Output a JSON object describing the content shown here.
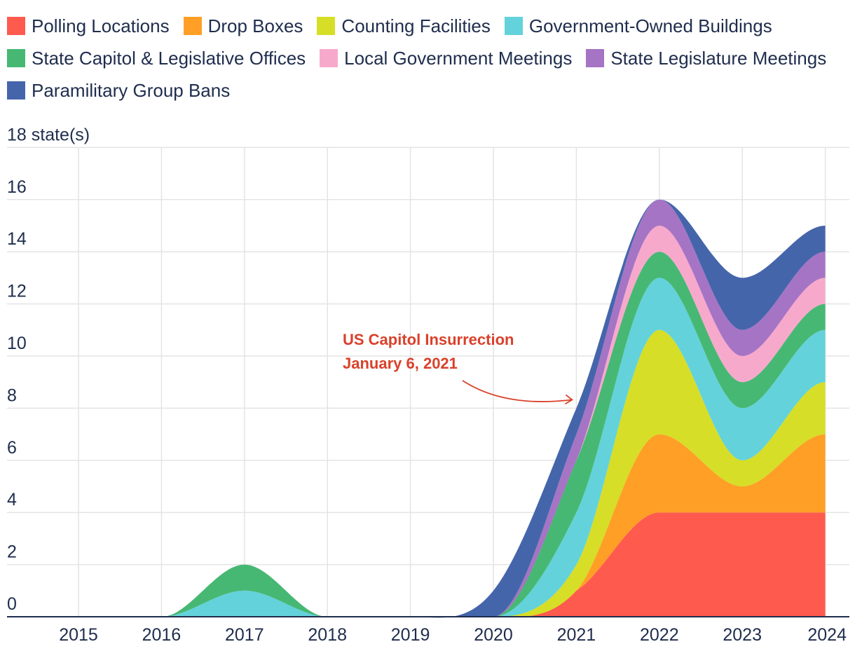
{
  "chart_data": {
    "type": "area",
    "stacked": true,
    "x": [
      2015,
      2016,
      2017,
      2018,
      2019,
      2020,
      2021,
      2022,
      2023,
      2024
    ],
    "ylabel": "state(s)",
    "ylim": [
      0,
      18
    ],
    "y_ticks": [
      0,
      2,
      4,
      6,
      8,
      10,
      12,
      14,
      16,
      18
    ],
    "top_tick_label": "18 state(s)",
    "grid": true,
    "legend_placement": "top",
    "series": [
      {
        "name": "Polling Locations",
        "color": "#ff5a4e",
        "values": [
          0,
          0,
          0,
          0,
          0,
          0,
          1,
          4,
          4,
          4
        ]
      },
      {
        "name": "Drop Boxes",
        "color": "#ff9f26",
        "values": [
          0,
          0,
          0,
          0,
          0,
          0,
          0,
          3,
          1,
          3
        ]
      },
      {
        "name": "Counting Facilities",
        "color": "#d6de27",
        "values": [
          0,
          0,
          0,
          0,
          0,
          0,
          1,
          4,
          1,
          2
        ]
      },
      {
        "name": "Government-Owned Buildings",
        "color": "#63d2db",
        "values": [
          0,
          0,
          1,
          0,
          0,
          0,
          2,
          2,
          2,
          2
        ]
      },
      {
        "name": "State Capitol & Legislative Offices",
        "color": "#47b873",
        "values": [
          0,
          0,
          1,
          0,
          0,
          0,
          2,
          1,
          1,
          1
        ]
      },
      {
        "name": "Local Government Meetings",
        "color": "#f7a9cc",
        "values": [
          0,
          0,
          0,
          0,
          0,
          0,
          0,
          1,
          1,
          1
        ]
      },
      {
        "name": "State Legislature Meetings",
        "color": "#a674c4",
        "values": [
          0,
          0,
          0,
          0,
          0,
          0,
          1,
          1,
          1,
          1
        ]
      },
      {
        "name": "Paramilitary Group Bans",
        "color": "#4565ab",
        "values": [
          0,
          0,
          0,
          0,
          0,
          1,
          1,
          0,
          2,
          1
        ]
      }
    ],
    "annotation": {
      "lines": [
        "US Capitol Insurrection",
        "January 6, 2021"
      ],
      "x": 2021,
      "y": 8,
      "color": "#d9412b"
    }
  }
}
